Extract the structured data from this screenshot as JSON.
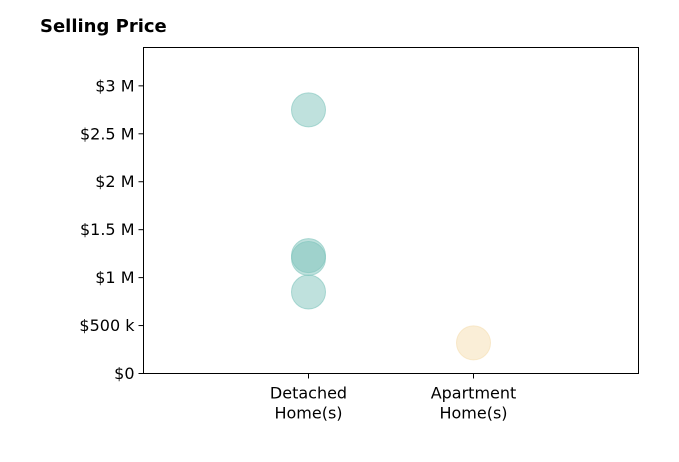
{
  "chart_data": {
    "type": "scatter",
    "title": "Selling Price",
    "xlabel": "",
    "ylabel": "",
    "categories": [
      [
        "Detached",
        "Home(s)"
      ],
      [
        "Apartment",
        "Home(s)"
      ]
    ],
    "xlim": [
      0,
      3
    ],
    "ylim": [
      0,
      3400000
    ],
    "y_ticks": [
      {
        "value": 0,
        "label": "$0"
      },
      {
        "value": 500000,
        "label": "$500 k"
      },
      {
        "value": 1000000,
        "label": "$1 M"
      },
      {
        "value": 1500000,
        "label": "$1.5 M"
      },
      {
        "value": 2000000,
        "label": "$2 M"
      },
      {
        "value": 2500000,
        "label": "$2.5 M"
      },
      {
        "value": 3000000,
        "label": "$3 M"
      }
    ],
    "grid": false,
    "series": [
      {
        "category_index": 0,
        "color": "#7fc4bc",
        "values": [
          2750000,
          1230000,
          1200000,
          850000
        ]
      },
      {
        "category_index": 1,
        "color": "#f5deb0",
        "values": [
          320000
        ]
      }
    ]
  }
}
